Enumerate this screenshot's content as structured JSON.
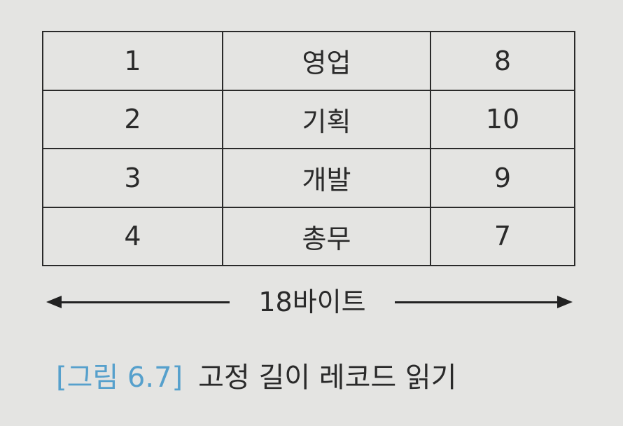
{
  "table": {
    "rows": [
      [
        "1",
        "영업",
        "8"
      ],
      [
        "2",
        "기획",
        "10"
      ],
      [
        "3",
        "개발",
        "9"
      ],
      [
        "4",
        "총무",
        "7"
      ]
    ]
  },
  "size_indicator": {
    "label": "18바이트"
  },
  "caption": {
    "figure_number": "[그림 6.7]",
    "title": "고정 길이 레코드 읽기"
  }
}
